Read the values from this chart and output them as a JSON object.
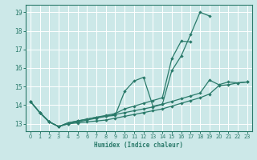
{
  "xlabel": "Humidex (Indice chaleur)",
  "xlim": [
    -0.5,
    23.5
  ],
  "ylim": [
    12.6,
    19.4
  ],
  "yticks": [
    13,
    14,
    15,
    16,
    17,
    18,
    19
  ],
  "xticks": [
    0,
    1,
    2,
    3,
    4,
    5,
    6,
    7,
    8,
    9,
    10,
    11,
    12,
    13,
    14,
    15,
    16,
    17,
    18,
    19,
    20,
    21,
    22,
    23
  ],
  "bg_color": "#cce8e8",
  "grid_color": "#ffffff",
  "line_color": "#2a7a6a",
  "line1_x": [
    0,
    1,
    2,
    3,
    4,
    5,
    6,
    7,
    8,
    9,
    10,
    11,
    12,
    13,
    14,
    15,
    16,
    17,
    18,
    19
  ],
  "line1_y": [
    14.2,
    13.6,
    13.1,
    12.85,
    13.05,
    13.15,
    13.25,
    13.35,
    13.4,
    13.45,
    14.75,
    15.3,
    15.5,
    13.95,
    14.05,
    15.85,
    16.65,
    17.8,
    19.0,
    18.8
  ],
  "line2_x": [
    0,
    1,
    2,
    3,
    4,
    5,
    6,
    7,
    8,
    9,
    10,
    11,
    12,
    13,
    14,
    15,
    16,
    17
  ],
  "line2_y": [
    14.2,
    13.6,
    13.1,
    12.85,
    13.05,
    13.15,
    13.25,
    13.35,
    13.45,
    13.55,
    13.8,
    13.95,
    14.1,
    14.25,
    14.4,
    16.5,
    17.45,
    17.4
  ],
  "line3_x": [
    0,
    1,
    2,
    3,
    4,
    5,
    6,
    7,
    8,
    9,
    10,
    11,
    12,
    13,
    14,
    15,
    16,
    17,
    18,
    19,
    20,
    21,
    22,
    23
  ],
  "line3_y": [
    14.2,
    13.6,
    13.1,
    12.85,
    13.0,
    13.1,
    13.2,
    13.3,
    13.4,
    13.5,
    13.6,
    13.7,
    13.8,
    13.9,
    14.05,
    14.2,
    14.35,
    14.5,
    14.65,
    15.35,
    15.1,
    15.25,
    15.2,
    15.25
  ],
  "line4_x": [
    0,
    1,
    2,
    3,
    4,
    5,
    6,
    7,
    8,
    9,
    10,
    11,
    12,
    13,
    14,
    15,
    16,
    17,
    18,
    19,
    20,
    21,
    22,
    23
  ],
  "line4_y": [
    14.2,
    13.6,
    13.1,
    12.85,
    13.0,
    13.05,
    13.1,
    13.15,
    13.2,
    13.3,
    13.4,
    13.5,
    13.6,
    13.7,
    13.8,
    13.95,
    14.1,
    14.25,
    14.4,
    14.6,
    15.05,
    15.1,
    15.2,
    15.25
  ]
}
